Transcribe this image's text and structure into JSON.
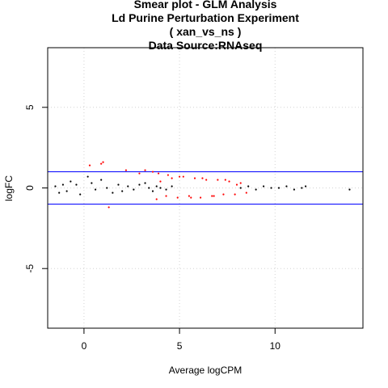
{
  "chart_data": {
    "type": "scatter",
    "title_lines": [
      "Smear plot - GLM Analysis",
      "Ld Purine Perturbation Experiment",
      "( xan_vs_ns )",
      "Data Source:RNAseq"
    ],
    "xlabel": "Average logCPM",
    "ylabel": "logFC",
    "xlim": [
      -1.9,
      14.6
    ],
    "ylim": [
      -8.7,
      8.7
    ],
    "x_ticks": [
      0,
      5,
      10
    ],
    "y_ticks": [
      -5,
      0,
      5
    ],
    "grid": true,
    "threshold_lines": [
      1,
      -1
    ],
    "colors": {
      "nonsignificant": "#000000",
      "significant": "#ff0000",
      "threshold": "#0000ff",
      "grid": "#d3d3d3"
    },
    "series": [
      {
        "color_key": "nonsignificant",
        "x": [
          -1.5,
          -1.3,
          -1.1,
          -0.9,
          -0.7,
          -0.4,
          -0.2,
          0.2,
          0.4,
          0.6,
          0.9,
          1.2,
          1.5,
          1.8,
          2.0,
          2.3,
          2.6,
          2.9,
          3.2,
          3.4,
          3.6,
          3.8,
          4.0,
          4.3,
          4.6,
          8.2,
          8.6,
          9.0,
          9.4,
          9.8,
          10.2,
          10.6,
          11.0,
          11.4,
          11.6,
          13.9
        ],
        "y": [
          0.1,
          -0.3,
          0.2,
          -0.2,
          0.4,
          0.2,
          -0.4,
          0.7,
          0.3,
          -0.1,
          0.5,
          0.0,
          -0.3,
          0.2,
          -0.2,
          0.1,
          -0.1,
          0.2,
          0.3,
          0.0,
          -0.2,
          0.1,
          0.0,
          -0.1,
          0.1,
          0.0,
          0.1,
          -0.1,
          0.1,
          0.0,
          0.0,
          0.1,
          -0.1,
          0.0,
          0.1,
          -0.1
        ]
      },
      {
        "color_key": "significant",
        "x": [
          0.3,
          0.9,
          1.0,
          1.3,
          2.2,
          2.9,
          3.2,
          3.6,
          3.9,
          4.0,
          4.3,
          4.6,
          4.9,
          5.2,
          5.5,
          5.8,
          6.1,
          6.4,
          6.7,
          7.0,
          7.3,
          7.6,
          7.9,
          8.2,
          8.5,
          3.8,
          4.4,
          5.0,
          5.6,
          6.2,
          6.8,
          7.4,
          8.0
        ],
        "y": [
          1.4,
          1.5,
          1.6,
          -1.2,
          1.1,
          0.9,
          1.1,
          1.0,
          0.9,
          0.4,
          -0.5,
          0.6,
          -0.6,
          0.7,
          -0.5,
          0.6,
          -0.6,
          0.5,
          -0.5,
          0.5,
          -0.4,
          0.4,
          -0.4,
          0.3,
          -0.3,
          -0.7,
          0.8,
          0.7,
          -0.6,
          0.6,
          -0.5,
          0.5,
          0.2
        ]
      }
    ]
  }
}
